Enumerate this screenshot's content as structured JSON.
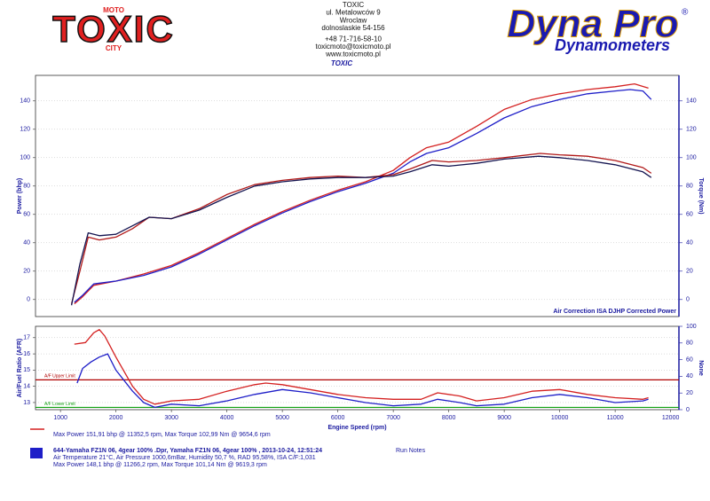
{
  "header": {
    "logo": {
      "main": "TOXIC",
      "top": "MOTO",
      "bottom": "CITY"
    },
    "address": [
      "TOXIC",
      "ul. Metalowców 9",
      "Wroclaw",
      "dolnoslaskie 54-156",
      "+48 71-716-58-10",
      "toxicmoto@toxicmoto.pl",
      "www.toxicmoto.pl"
    ],
    "subtitle": "TOXIC",
    "brand": {
      "main": "Dyna Pro",
      "mark": "®",
      "sub": "Dynamometers"
    }
  },
  "chart_data": [
    {
      "type": "line",
      "ylabel": "Power (bhp)",
      "y2label": "Torque (Nm)",
      "legend": [
        "Air Correction ISA",
        "DJHP Corrected Power"
      ],
      "xlim": [
        550,
        12150
      ],
      "ylim": [
        -12,
        158
      ],
      "yticks": [
        0,
        20,
        40,
        60,
        80,
        100,
        120,
        140
      ],
      "y2lim": [
        -12,
        158
      ],
      "y2ticks": [
        0,
        20,
        40,
        60,
        80,
        100,
        120,
        140
      ],
      "grid": true,
      "series": [
        {
          "color": "#d42020",
          "x": [
            1250,
            1400,
            1600,
            2000,
            2500,
            3000,
            3500,
            4000,
            4500,
            5000,
            5500,
            6000,
            6500,
            7000,
            7300,
            7600,
            8000,
            8500,
            9000,
            9500,
            10000,
            10500,
            11000,
            11350,
            11600
          ],
          "values": [
            -3,
            2,
            10,
            13,
            18,
            24,
            33,
            43,
            53,
            62,
            70,
            77,
            83,
            91,
            100,
            107,
            111,
            122,
            134,
            141,
            145,
            148,
            150,
            152,
            149
          ]
        },
        {
          "color": "#1e1ec8",
          "x": [
            1250,
            1400,
            1600,
            2000,
            2500,
            3000,
            3500,
            4000,
            4500,
            5000,
            5500,
            6000,
            6500,
            7000,
            7300,
            7600,
            8000,
            8500,
            9000,
            9500,
            10000,
            10500,
            11000,
            11270,
            11500,
            11650
          ],
          "values": [
            -2,
            3,
            11,
            13,
            17,
            23,
            32,
            42,
            52,
            61,
            69,
            76,
            82,
            89,
            97,
            103,
            107,
            117,
            128,
            136,
            141,
            145,
            147,
            148,
            147,
            141
          ]
        },
        {
          "color": "#b01818",
          "axis": "y2",
          "x": [
            1200,
            1350,
            1500,
            1700,
            2000,
            2300,
            2600,
            3000,
            3500,
            4000,
            4500,
            5000,
            5500,
            6000,
            6500,
            7000,
            7300,
            7700,
            8000,
            8500,
            9000,
            9650,
            10000,
            10500,
            11000,
            11500,
            11650
          ],
          "values": [
            -3,
            20,
            44,
            42,
            44,
            50,
            58,
            57,
            64,
            74,
            81,
            84,
            86,
            87,
            86,
            88,
            92,
            98,
            97,
            98,
            100,
            103,
            102,
            101,
            98,
            93,
            89
          ]
        },
        {
          "color": "#141450",
          "axis": "y2",
          "x": [
            1200,
            1350,
            1500,
            1700,
            2000,
            2300,
            2600,
            3000,
            3500,
            4000,
            4500,
            5000,
            5500,
            6000,
            6500,
            7000,
            7300,
            7700,
            8000,
            8500,
            9000,
            9620,
            10000,
            10500,
            11000,
            11500,
            11650
          ],
          "values": [
            -4,
            25,
            47,
            45,
            46,
            52,
            58,
            57,
            63,
            72,
            80,
            83,
            85,
            86,
            86,
            87,
            90,
            95,
            94,
            96,
            99,
            101,
            100,
            98,
            95,
            90,
            86
          ]
        }
      ]
    },
    {
      "type": "line",
      "ylabel": "Air/Fuel Ratio (AFR)",
      "y2label": "None",
      "xlabel": "Engine Speed (rpm)",
      "xlim": [
        550,
        12150
      ],
      "xticks": [
        1000,
        2000,
        3000,
        4000,
        5000,
        6000,
        7000,
        8000,
        9000,
        10000,
        11000,
        12000
      ],
      "ylim": [
        12.56,
        17.7
      ],
      "yticks": [
        13,
        14,
        15,
        16,
        17
      ],
      "y2lim": [
        0,
        100
      ],
      "y2ticks": [
        0,
        20,
        40,
        60,
        80,
        100
      ],
      "grid": true,
      "annotations": [
        {
          "text": "A/F Upper Limit",
          "value": 14.4,
          "color": "#b00000"
        },
        {
          "text": "A/F Lower Limit",
          "value": 12.7,
          "color": "#10a010"
        }
      ],
      "series": [
        {
          "color": "#d42020",
          "x": [
            1250,
            1450,
            1600,
            1700,
            1800,
            2000,
            2300,
            2500,
            2700,
            3000,
            3500,
            4000,
            4500,
            4700,
            5000,
            5500,
            6000,
            6500,
            7000,
            7500,
            7800,
            8200,
            8500,
            9000,
            9500,
            10000,
            10500,
            11000,
            11500,
            11600
          ],
          "values": [
            16.6,
            16.7,
            17.3,
            17.5,
            17.1,
            15.8,
            14.0,
            13.2,
            12.9,
            13.1,
            13.2,
            13.7,
            14.1,
            14.2,
            14.1,
            13.8,
            13.5,
            13.3,
            13.2,
            13.2,
            13.6,
            13.4,
            13.1,
            13.3,
            13.7,
            13.8,
            13.5,
            13.3,
            13.2,
            13.3
          ]
        },
        {
          "color": "#1e1ec8",
          "x": [
            1300,
            1400,
            1550,
            1700,
            1850,
            2000,
            2300,
            2500,
            2700,
            3000,
            3500,
            4000,
            4500,
            5000,
            5500,
            6000,
            6500,
            7000,
            7500,
            7800,
            8200,
            8500,
            9000,
            9500,
            10000,
            10500,
            11000,
            11500,
            11600
          ],
          "values": [
            14.2,
            15.1,
            15.5,
            15.8,
            16.0,
            15.0,
            13.7,
            13.0,
            12.7,
            12.9,
            12.8,
            13.1,
            13.5,
            13.8,
            13.6,
            13.3,
            13.0,
            12.8,
            12.9,
            13.2,
            13.0,
            12.8,
            12.9,
            13.3,
            13.5,
            13.3,
            13.0,
            13.1,
            13.2
          ]
        }
      ]
    }
  ],
  "runs": [
    {
      "color": "#d42020",
      "lines": [
        "Max Power 151,91 bhp @ 11352,5 rpm, Max Torque 102,99 Nm @ 9654,6 rpm"
      ]
    },
    {
      "color": "#1e1ec8",
      "lines": [
        "644-Yamaha FZ1N 06, 4gear 100% .Dpr,   Yamaha FZ1N 06, 4gear 100% ,   2013-10-24,   12:51:24",
        "Air Temperature 21°C, Air Pressure 1000,6mBar, Humidity 50,7 %, RAD 95,58%,   ISA  C/F:1,031",
        "Max Power 148,1 bhp @ 11266,2 rpm, Max Torque 101,14 Nm @ 9619,3 rpm"
      ]
    }
  ],
  "notes_label": "Run Notes"
}
